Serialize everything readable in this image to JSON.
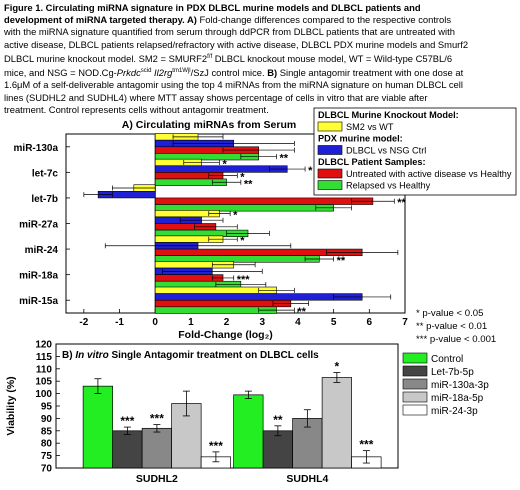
{
  "caption": {
    "text": "Figure 1. Circulating miRNA signature in PDX DLBCL murine models and DLBCL patients and development of miRNA targeted therapy. A) Fold-change differences compared to the respective controls with the miRNA signature quantified from serum through ddPCR from DLBCL patients that are untreated with active disease, DLBCL patients relapsed/refractory with active disease, DLBCL PDX murine models and Smurf2 DLBCL murine knockout model. SM2 = SMURF2^{f/f} DLBCL knockout mouse model, WT = Wild-type C57BL/6 mice, and NSG = NOD.Cg-Prkdc^{scid} Il2rg^{tm1Wjl}/SzJ control mice. B) Single antagomir treatment with one dose at 1.6μM of a self-deliverable antagomir using the top 4 miRNAs from the miRNA signature on human DLBCL cell lines (SUDHL2 and SUDHL4) where MTT assay shows percentage of cells in vitro that are viable after treatment. Control represents cells without antagomir treatment.",
    "line1_a": "Figure 1. Circulating miRNA signature in PDX DLBCL murine models and DLBCL patients and",
    "line2_a": "development of miRNA targeted therapy. A)",
    "line2_b": " Fold-change differences compared to the respective controls",
    "line3": "with the miRNA signature quantified from serum through ddPCR from DLBCL patients that are untreated with",
    "line4": "active disease, DLBCL patients relapsed/refractory with active disease, DLBCL PDX murine models and Smurf2",
    "line5_a": "DLBCL murine knockout model. SM2 = SMURF2",
    "line5_sup": "f/f",
    "line5_b": " DLBCL knockout mouse model, WT = Wild-type C57BL/6",
    "line6_a": "mice, and NSG = NOD.Cg-",
    "line6_i1": "Prkdc",
    "line6_sup1": "scid",
    "line6_i2": " Il2rg",
    "line6_sup2": "tm1Wjl",
    "line6_b": "/SzJ control mice. ",
    "line6_c": "B)",
    "line6_d": " Single antagomir treatment with one dose at",
    "line7": "1.6μM of a self-deliverable antagomir using the top 4 miRNAs from the miRNA signature on human DLBCL cell",
    "line8": "lines (SUDHL2 and SUDHL4) where MTT assay shows percentage of cells in vitro that are viable after",
    "line9": "treatment. Control represents cells without antagomir treatment."
  },
  "pvalues": [
    "* p-value < 0.05",
    "** p-value < 0.01",
    "*** p-value < 0.001"
  ],
  "chart_data": [
    {
      "type": "bar",
      "orientation": "horizontal",
      "title": "A) Circulating miRNAs from Serum",
      "xlabel": "Fold-Change (log₂)",
      "ylabel": "",
      "xlim": [
        -2.5,
        7
      ],
      "xticks": [
        -2,
        -1,
        0,
        1,
        2,
        3,
        4,
        5,
        6,
        7
      ],
      "categories": [
        "miR-130a",
        "let-7c",
        "let-7b",
        "miR-27a",
        "miR-24",
        "miR-18a",
        "miR-15a"
      ],
      "legend": {
        "placement": "top-right",
        "groups": [
          {
            "title": "DLBCL Murine Knockout Model:",
            "entries": [
              {
                "series": 0,
                "label": "SM2 vs WT"
              }
            ]
          },
          {
            "title": "PDX murine model:",
            "entries": [
              {
                "series": 1,
                "label": "DLBCL vs NSG Ctrl"
              }
            ]
          },
          {
            "title": "DLBCL Patient Samples:",
            "entries": [
              {
                "series": 2,
                "label": "Untreated with active disease vs Healthy"
              },
              {
                "series": 3,
                "label": "Relapsed vs Healthy"
              }
            ]
          }
        ]
      },
      "series": [
        {
          "color": "#ffff33",
          "values": [
            1.2,
            1.3,
            -0.6,
            1.8,
            1.9,
            2.2,
            3.4
          ],
          "errors": [
            0.7,
            0.5,
            0.6,
            0.3,
            0.4,
            0.6,
            0.5
          ]
        },
        {
          "color": "#1f1fd6",
          "values": [
            2.2,
            3.7,
            -1.6,
            1.3,
            1.2,
            1.6,
            5.8
          ],
          "errors": [
            1.7,
            0.5,
            0.4,
            0.6,
            2.6,
            1.4,
            0.8
          ]
        },
        {
          "color": "#e01010",
          "values": [
            2.9,
            1.9,
            6.1,
            1.7,
            5.8,
            1.9,
            3.8
          ],
          "errors": [
            1.0,
            0.4,
            0.6,
            0.6,
            1.0,
            0.3,
            0.5
          ]
        },
        {
          "color": "#33dd33",
          "values": [
            2.9,
            2.0,
            5.0,
            2.6,
            4.6,
            2.4,
            3.4
          ],
          "errors": [
            0.5,
            0.4,
            0.5,
            0.6,
            0.4,
            0.7,
            0.5
          ]
        }
      ],
      "annotations": [
        {
          "category": 0,
          "series": 3,
          "text": "**"
        },
        {
          "category": 1,
          "series": 0,
          "text": "*"
        },
        {
          "category": 1,
          "series": 1,
          "text": "*"
        },
        {
          "category": 1,
          "series": 2,
          "text": "*"
        },
        {
          "category": 1,
          "series": 3,
          "text": "**"
        },
        {
          "category": 2,
          "series": 2,
          "text": "**"
        },
        {
          "category": 3,
          "series": 0,
          "text": "*"
        },
        {
          "category": 4,
          "series": 0,
          "text": "*"
        },
        {
          "category": 4,
          "series": 3,
          "text": "**"
        },
        {
          "category": 5,
          "series": 2,
          "text": "***"
        },
        {
          "category": 6,
          "series": 3,
          "text": "**"
        }
      ],
      "grid": false
    },
    {
      "type": "bar",
      "orientation": "vertical",
      "title": "B) In vitro Single Antagomir treatment on DLBCL cells",
      "title_plain": "B) ",
      "title_italic": "In vitro",
      "title_rest": " Single Antagomir treatment on DLBCL cells",
      "xlabel": "",
      "ylabel": "Viability (%)",
      "ylim": [
        70,
        120
      ],
      "yticks": [
        70,
        75,
        80,
        85,
        90,
        95,
        100,
        105,
        110,
        115,
        120
      ],
      "categories": [
        "SUDHL2",
        "SUDHL4"
      ],
      "legend": {
        "placement": "right"
      },
      "series": [
        {
          "name": "Control",
          "color": "#22ee22",
          "values": [
            103,
            99.5
          ],
          "errors": [
            3,
            1.5
          ],
          "labels": [
            "",
            ""
          ]
        },
        {
          "name": "Let-7b-5p",
          "color": "#444444",
          "values": [
            85,
            85
          ],
          "errors": [
            1.5,
            2
          ],
          "labels": [
            "***",
            "**"
          ]
        },
        {
          "name": "miR-130a-3p",
          "color": "#888888",
          "values": [
            86,
            90
          ],
          "errors": [
            1.5,
            3.5
          ],
          "labels": [
            "***",
            ""
          ]
        },
        {
          "name": "miR-18a-5p",
          "color": "#c8c8c8",
          "values": [
            96,
            106.5
          ],
          "errors": [
            5,
            2
          ],
          "labels": [
            "",
            "*"
          ]
        },
        {
          "name": "miR-24-3p",
          "color": "#ffffff",
          "values": [
            74.5,
            74.5
          ],
          "errors": [
            2,
            2.5
          ],
          "labels": [
            "***",
            "***"
          ]
        }
      ],
      "grid": false
    }
  ]
}
